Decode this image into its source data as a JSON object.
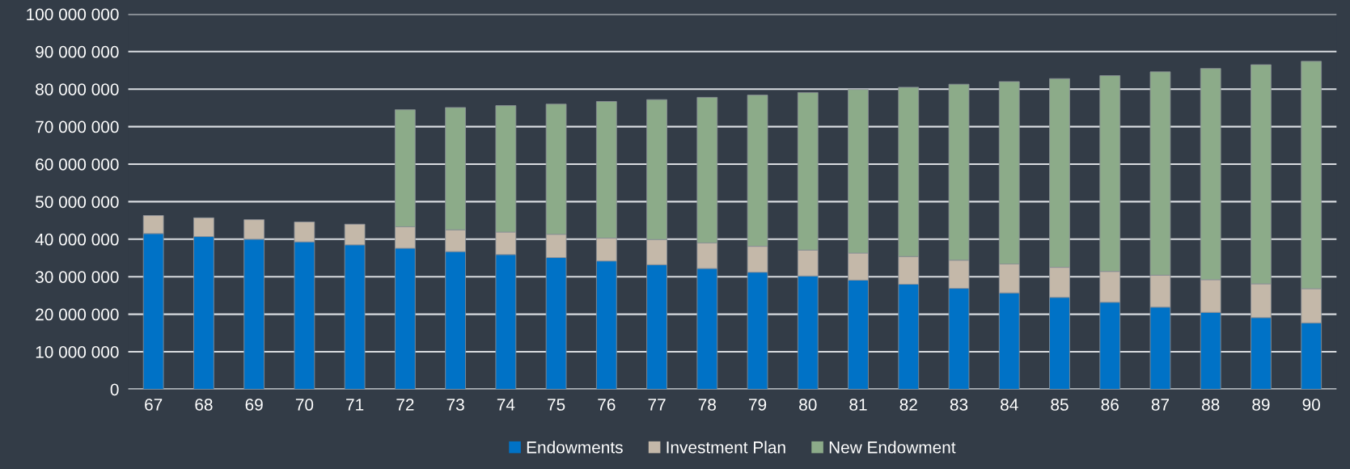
{
  "chart_data": {
    "type": "bar",
    "stacked": true,
    "grid": "y",
    "legend": "bottom",
    "categories": [
      "67",
      "68",
      "69",
      "70",
      "71",
      "72",
      "73",
      "74",
      "75",
      "76",
      "77",
      "78",
      "79",
      "80",
      "81",
      "82",
      "83",
      "84",
      "85",
      "86",
      "87",
      "88",
      "89",
      "90"
    ],
    "series": [
      {
        "name": "Endowments",
        "color": "#0072c6",
        "values": [
          41500000,
          40700000,
          40000000,
          39300000,
          38500000,
          37600000,
          36700000,
          35900000,
          35100000,
          34200000,
          33200000,
          32200000,
          31200000,
          30200000,
          29100000,
          28000000,
          26900000,
          25700000,
          24500000,
          23200000,
          21900000,
          20500000,
          19100000,
          17700000
        ]
      },
      {
        "name": "Investment Plan",
        "color": "#c4b8a9",
        "values": [
          4800000,
          5000000,
          5200000,
          5300000,
          5500000,
          5700000,
          5800000,
          6000000,
          6200000,
          6100000,
          6700000,
          6800000,
          6900000,
          6900000,
          7200000,
          7400000,
          7500000,
          7700000,
          8000000,
          8200000,
          8500000,
          8700000,
          9000000,
          9100000
        ]
      },
      {
        "name": "New Endowment",
        "color": "#8cab89",
        "values": [
          null,
          null,
          null,
          null,
          null,
          31200000,
          32600000,
          33700000,
          34700000,
          36400000,
          37300000,
          38800000,
          40300000,
          42000000,
          43600000,
          45100000,
          46900000,
          48600000,
          50300000,
          52200000,
          54200000,
          56300000,
          58400000,
          60600000
        ]
      }
    ],
    "ylim": [
      0,
      100000000
    ],
    "yticks": [
      {
        "value": 0,
        "label": "0"
      },
      {
        "value": 10000000,
        "label": "10 000 000"
      },
      {
        "value": 20000000,
        "label": "20 000 000"
      },
      {
        "value": 30000000,
        "label": "30 000 000"
      },
      {
        "value": 40000000,
        "label": "40 000 000"
      },
      {
        "value": 50000000,
        "label": "50 000 000"
      },
      {
        "value": 60000000,
        "label": "60 000 000"
      },
      {
        "value": 70000000,
        "label": "70 000 000"
      },
      {
        "value": 80000000,
        "label": "80 000 000"
      },
      {
        "value": 90000000,
        "label": "90 000 000"
      },
      {
        "value": 100000000,
        "label": "100 000 000"
      }
    ]
  }
}
